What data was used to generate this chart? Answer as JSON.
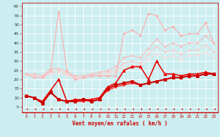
{
  "xlabel": "Vent moyen/en rafales ( km/h )",
  "background_color": "#cceef0",
  "grid_color": "#ffffff",
  "xlim": [
    -0.5,
    23.5
  ],
  "ylim": [
    2,
    62
  ],
  "yticks": [
    5,
    10,
    15,
    20,
    25,
    30,
    35,
    40,
    45,
    50,
    55,
    60
  ],
  "xticks": [
    0,
    1,
    2,
    3,
    4,
    5,
    6,
    7,
    8,
    9,
    10,
    11,
    12,
    13,
    14,
    15,
    16,
    17,
    18,
    19,
    20,
    21,
    22,
    23
  ],
  "series": [
    {
      "x": [
        0,
        1,
        2,
        3,
        4,
        5,
        6,
        7,
        8,
        9,
        10,
        11,
        12,
        13,
        14,
        15,
        16,
        17,
        18,
        19,
        20,
        21,
        22,
        23
      ],
      "y": [
        23,
        21,
        21,
        25,
        57,
        25,
        20,
        21,
        22,
        22,
        22,
        22,
        45,
        47,
        44,
        56,
        55,
        47,
        49,
        44,
        45,
        45,
        51,
        40
      ],
      "color": "#ffaaaa",
      "linewidth": 0.8,
      "marker": "+",
      "markersize": 3,
      "markeredgewidth": 0.8,
      "zorder": 3
    },
    {
      "x": [
        0,
        1,
        2,
        3,
        4,
        5,
        6,
        7,
        8,
        9,
        10,
        11,
        12,
        13,
        14,
        15,
        16,
        17,
        18,
        19,
        20,
        21,
        22,
        23
      ],
      "y": [
        23,
        23,
        22,
        26,
        26,
        24,
        22,
        22,
        23,
        24,
        25,
        27,
        32,
        33,
        32,
        37,
        42,
        38,
        40,
        38,
        40,
        40,
        44,
        40
      ],
      "color": "#ffbbbb",
      "linewidth": 0.8,
      "marker": "+",
      "markersize": 3,
      "markeredgewidth": 0.8,
      "zorder": 3
    },
    {
      "x": [
        0,
        1,
        2,
        3,
        4,
        5,
        6,
        7,
        8,
        9,
        10,
        11,
        12,
        13,
        14,
        15,
        16,
        17,
        18,
        19,
        20,
        21,
        22,
        23
      ],
      "y": [
        23,
        22,
        21,
        24,
        25,
        23,
        21,
        21,
        22,
        23,
        24,
        25,
        29,
        30,
        29,
        34,
        38,
        35,
        36,
        34,
        36,
        36,
        39,
        35
      ],
      "color": "#ffcccc",
      "linewidth": 0.8,
      "marker": "+",
      "markersize": 3,
      "markeredgewidth": 0.8,
      "zorder": 2
    },
    {
      "x": [
        0,
        1,
        2,
        3,
        4,
        5,
        6,
        7,
        8,
        9,
        10,
        11,
        12,
        13,
        14,
        15,
        16,
        17,
        18,
        19,
        20,
        21,
        22,
        23
      ],
      "y": [
        23,
        22,
        21,
        23,
        24,
        22,
        21,
        21,
        22,
        22,
        23,
        24,
        27,
        28,
        27,
        31,
        34,
        32,
        33,
        31,
        33,
        33,
        35,
        32
      ],
      "color": "#ffdddd",
      "linewidth": 0.8,
      "marker": "+",
      "markersize": 3,
      "markeredgewidth": 0.8,
      "zorder": 2
    },
    {
      "x": [
        0,
        1,
        2,
        3,
        4,
        5,
        6,
        7,
        8,
        9,
        10,
        11,
        12,
        13,
        14,
        15,
        16,
        17,
        18,
        19,
        20,
        21,
        22,
        23
      ],
      "y": [
        11,
        10,
        8,
        14,
        20,
        8,
        9,
        9,
        9,
        10,
        16,
        18,
        25,
        27,
        27,
        20,
        30,
        23,
        23,
        22,
        23,
        23,
        24,
        23
      ],
      "color": "#ee0000",
      "linewidth": 1.2,
      "marker": "^",
      "markersize": 3,
      "markeredgewidth": 0.6,
      "zorder": 5
    },
    {
      "x": [
        0,
        1,
        2,
        3,
        4,
        5,
        6,
        7,
        8,
        9,
        10,
        11,
        12,
        13,
        14,
        15,
        16,
        17,
        18,
        19,
        20,
        21,
        22,
        23
      ],
      "y": [
        11,
        10,
        7,
        13,
        9,
        8,
        8,
        9,
        8,
        9,
        15,
        17,
        18,
        19,
        17,
        18,
        19,
        20,
        21,
        21,
        22,
        22,
        23,
        23
      ],
      "color": "#cc0000",
      "linewidth": 1.5,
      "marker": "s",
      "markersize": 2.5,
      "markeredgewidth": 0.6,
      "zorder": 5
    },
    {
      "x": [
        0,
        1,
        2,
        3,
        4,
        5,
        6,
        7,
        8,
        9,
        10,
        11,
        12,
        13,
        14,
        15,
        16,
        17,
        18,
        19,
        20,
        21,
        22,
        23
      ],
      "y": [
        11,
        10,
        7,
        13,
        9,
        8,
        8,
        8,
        9,
        10,
        14,
        16,
        17,
        18,
        17,
        18,
        19,
        20,
        21,
        21,
        22,
        22,
        23,
        23
      ],
      "color": "#ff3333",
      "linewidth": 1.2,
      "marker": "o",
      "markersize": 2,
      "markeredgewidth": 0.5,
      "zorder": 4
    }
  ]
}
